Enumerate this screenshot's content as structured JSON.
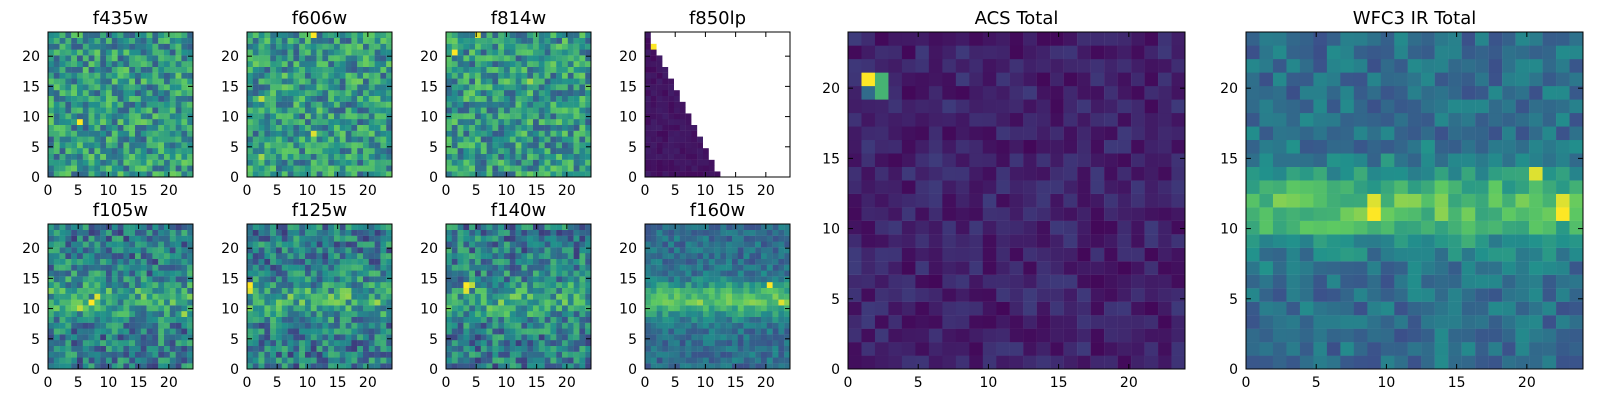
{
  "figure": {
    "colormap": "viridis",
    "colors": {
      "background": "#ffffff",
      "axes": "#000000",
      "masked": "#ffffff"
    }
  },
  "chart_data": [
    {
      "id": "f435w",
      "type": "heatmap",
      "title": "f435w",
      "shape": [
        25,
        25
      ],
      "xlim": [
        0,
        24
      ],
      "ylim": [
        0,
        24
      ],
      "xticks": [
        0,
        5,
        10,
        15,
        20
      ],
      "yticks": [
        0,
        5,
        10,
        15,
        20
      ],
      "pattern": "noise",
      "value_range": [
        0,
        1
      ],
      "notable_pixels": [
        {
          "x": 5,
          "y": 9,
          "value": 1.0
        }
      ]
    },
    {
      "id": "f606w",
      "type": "heatmap",
      "title": "f606w",
      "shape": [
        25,
        25
      ],
      "xlim": [
        0,
        24
      ],
      "ylim": [
        0,
        24
      ],
      "xticks": [
        0,
        5,
        10,
        15,
        20
      ],
      "yticks": [
        0,
        5,
        10,
        15,
        20
      ],
      "pattern": "noise",
      "value_range": [
        0,
        1
      ],
      "notable_pixels": [
        {
          "x": 11,
          "y": 24,
          "value": 1.0
        },
        {
          "x": 11,
          "y": 7,
          "value": 0.95
        },
        {
          "x": 2,
          "y": 13,
          "value": 0.9
        },
        {
          "x": 2,
          "y": 3,
          "value": 0.85
        }
      ]
    },
    {
      "id": "f814w",
      "type": "heatmap",
      "title": "f814w",
      "shape": [
        25,
        25
      ],
      "xlim": [
        0,
        24
      ],
      "ylim": [
        0,
        24
      ],
      "xticks": [
        0,
        5,
        10,
        15,
        20
      ],
      "yticks": [
        0,
        5,
        10,
        15,
        20
      ],
      "pattern": "noise",
      "value_range": [
        0,
        1
      ],
      "notable_pixels": [
        {
          "x": 1,
          "y": 21,
          "value": 1.0
        },
        {
          "x": 5,
          "y": 24,
          "value": 0.95
        },
        {
          "x": 14,
          "y": 16,
          "value": 0.85
        }
      ]
    },
    {
      "id": "f850lp",
      "type": "heatmap",
      "title": "f850lp",
      "shape": [
        25,
        25
      ],
      "xlim": [
        0,
        24
      ],
      "ylim": [
        0,
        24
      ],
      "xticks": [
        0,
        5,
        10,
        15,
        20
      ],
      "yticks": [
        0,
        5,
        10,
        15,
        20
      ],
      "pattern": "masked-triangle",
      "value_range": [
        0,
        1
      ],
      "valid_region": "x <= 12 - y/2",
      "notable_pixels": [
        {
          "x": 1,
          "y": 22,
          "value": 1.0
        },
        {
          "x": 2,
          "y": 22,
          "value": 0.65
        },
        {
          "x": 2,
          "y": 21,
          "value": 0.45
        },
        {
          "x": 3,
          "y": 21,
          "value": 0.35
        }
      ]
    },
    {
      "id": "f105w",
      "type": "heatmap",
      "title": "f105w",
      "shape": [
        25,
        25
      ],
      "xlim": [
        0,
        24
      ],
      "ylim": [
        0,
        24
      ],
      "xticks": [
        0,
        5,
        10,
        15,
        20
      ],
      "yticks": [
        0,
        5,
        10,
        15,
        20
      ],
      "pattern": "noise-band",
      "value_range": [
        0,
        1
      ],
      "notable_pixels": [
        {
          "x": 7,
          "y": 11,
          "value": 1.0
        },
        {
          "x": 8,
          "y": 12,
          "value": 0.95
        },
        {
          "x": 5,
          "y": 10,
          "value": 0.9
        },
        {
          "x": 23,
          "y": 9,
          "value": 0.85
        }
      ]
    },
    {
      "id": "f125w",
      "type": "heatmap",
      "title": "f125w",
      "shape": [
        25,
        25
      ],
      "xlim": [
        0,
        24
      ],
      "ylim": [
        0,
        24
      ],
      "xticks": [
        0,
        5,
        10,
        15,
        20
      ],
      "yticks": [
        0,
        5,
        10,
        15,
        20
      ],
      "pattern": "noise-band",
      "value_range": [
        0,
        1
      ],
      "notable_pixels": [
        {
          "x": 0,
          "y": 14,
          "value": 1.0
        },
        {
          "x": 0,
          "y": 13,
          "value": 0.95
        },
        {
          "x": 22,
          "y": 11,
          "value": 0.85
        }
      ]
    },
    {
      "id": "f140w",
      "type": "heatmap",
      "title": "f140w",
      "shape": [
        25,
        25
      ],
      "xlim": [
        0,
        24
      ],
      "ylim": [
        0,
        24
      ],
      "xticks": [
        0,
        5,
        10,
        15,
        20
      ],
      "yticks": [
        0,
        5,
        10,
        15,
        20
      ],
      "pattern": "noise-band",
      "value_range": [
        0,
        1
      ],
      "notable_pixels": [
        {
          "x": 3,
          "y": 14,
          "value": 1.0
        },
        {
          "x": 3,
          "y": 13,
          "value": 0.95
        },
        {
          "x": 4,
          "y": 14,
          "value": 0.9
        }
      ]
    },
    {
      "id": "f160w",
      "type": "heatmap",
      "title": "f160w",
      "shape": [
        25,
        25
      ],
      "xlim": [
        0,
        24
      ],
      "ylim": [
        0,
        24
      ],
      "xticks": [
        0,
        5,
        10,
        15,
        20
      ],
      "yticks": [
        0,
        5,
        10,
        15,
        20
      ],
      "pattern": "band",
      "value_range": [
        0,
        1
      ],
      "notable_pixels": [
        {
          "x": 21,
          "y": 14,
          "value": 1.0
        },
        {
          "x": 23,
          "y": 11,
          "value": 0.95
        },
        {
          "x": 9,
          "y": 11,
          "value": 0.85
        }
      ]
    },
    {
      "id": "acs-total",
      "type": "heatmap",
      "title": "ACS Total",
      "shape": [
        25,
        25
      ],
      "xlim": [
        0,
        24
      ],
      "ylim": [
        0,
        24
      ],
      "xticks": [
        0,
        5,
        10,
        15,
        20
      ],
      "yticks": [
        0,
        5,
        10,
        15,
        20
      ],
      "pattern": "dark",
      "value_range": [
        0,
        1
      ],
      "notable_pixels": [
        {
          "x": 1,
          "y": 21,
          "value": 1.0
        },
        {
          "x": 2,
          "y": 21,
          "value": 0.65
        },
        {
          "x": 2,
          "y": 20,
          "value": 0.65
        },
        {
          "x": 1,
          "y": 20,
          "value": 0.35
        }
      ]
    },
    {
      "id": "wfc3-ir-total",
      "type": "heatmap",
      "title": "WFC3 IR Total",
      "shape": [
        25,
        25
      ],
      "xlim": [
        0,
        24
      ],
      "ylim": [
        0,
        24
      ],
      "xticks": [
        0,
        5,
        10,
        15,
        20
      ],
      "yticks": [
        0,
        5,
        10,
        15,
        20
      ],
      "pattern": "band",
      "value_range": [
        0,
        1
      ],
      "notable_pixels": [
        {
          "x": 9,
          "y": 11,
          "value": 1.0
        },
        {
          "x": 9,
          "y": 12,
          "value": 0.95
        },
        {
          "x": 21,
          "y": 14,
          "value": 0.95
        },
        {
          "x": 23,
          "y": 11,
          "value": 1.0
        },
        {
          "x": 23,
          "y": 12,
          "value": 0.95
        }
      ]
    }
  ]
}
